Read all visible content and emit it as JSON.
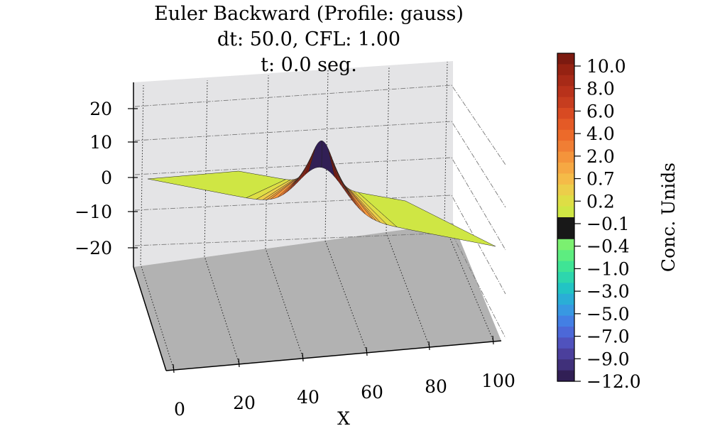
{
  "chart_data": {
    "type": "surface3d",
    "title_lines": [
      "Euler Backward (Profile: gauss)",
      "dt: 50.0, CFL: 1.00",
      "t: 0.0 seg."
    ],
    "xlabel": "X",
    "ylabel": "",
    "x_ticks": [
      "0",
      "20",
      "40",
      "60",
      "80",
      "100"
    ],
    "z_ticks": [
      "20",
      "10",
      "0",
      "−10",
      "−20"
    ],
    "xlim": [
      0,
      100
    ],
    "zlim": [
      -25,
      25
    ],
    "grid": true,
    "profile": {
      "name": "gauss",
      "amplitude": 13,
      "center": 50,
      "sigma": 6.5
    },
    "colorbar": {
      "label": "Conc. Unids",
      "tick_labels": [
        "10.0",
        "8.0",
        "6.0",
        "4.0",
        "2.0",
        "0.7",
        "0.2",
        "−0.1",
        "−0.4",
        "−1.0",
        "−3.0",
        "−5.0",
        "−7.0",
        "−9.0",
        "−12.0"
      ],
      "levels": [
        11,
        10,
        9,
        8,
        7,
        6,
        5,
        4,
        3,
        2,
        1,
        0.7,
        0.45,
        0.2,
        0.05,
        -0.1,
        -0.25,
        -0.4,
        -0.7,
        -1,
        -2,
        -3,
        -4,
        -5,
        -6,
        -7,
        -8,
        -9,
        -10.5,
        -12
      ],
      "colors": [
        "#7c1a10",
        "#952212",
        "#a72a17",
        "#b8321b",
        "#c63d1f",
        "#d84a22",
        "#e45a26",
        "#ec6a2a",
        "#f07e34",
        "#f4943b",
        "#f6a843",
        "#f5bb48",
        "#ecce4a",
        "#dede45",
        "#cfe644",
        "#181818",
        "#181818",
        "#7bf070",
        "#5ded80",
        "#3fe495",
        "#2dd6ad",
        "#22c4c4",
        "#2aaed6",
        "#3898e2",
        "#437fe4",
        "#4c68d8",
        "#5052bd",
        "#4b3f9c",
        "#40307a",
        "#311f55"
      ]
    }
  }
}
